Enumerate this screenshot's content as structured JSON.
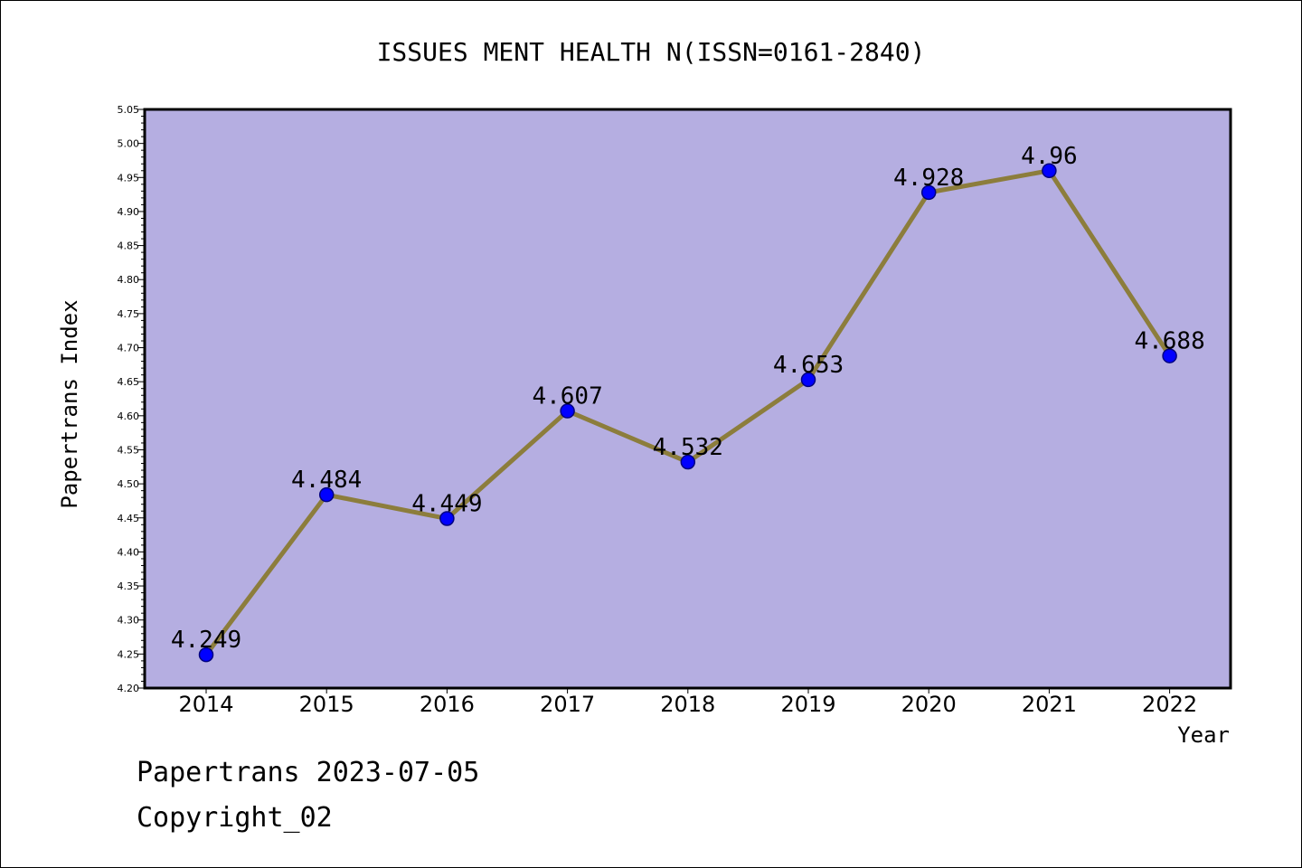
{
  "chart_data": {
    "type": "line",
    "title": "ISSUES MENT HEALTH N(ISSN=0161-2840)",
    "xlabel": "Year",
    "ylabel": "Papertrans Index",
    "categories": [
      "2014",
      "2015",
      "2016",
      "2017",
      "2018",
      "2019",
      "2020",
      "2021",
      "2022"
    ],
    "series": [
      {
        "values": [
          4.249,
          4.484,
          4.449,
          4.607,
          4.532,
          4.653,
          4.928,
          4.96,
          4.688
        ],
        "data_labels": [
          "4.249",
          "4.484",
          "4.449",
          "4.607",
          "4.532",
          "4.653",
          "4.928",
          "4.96",
          "4.688"
        ]
      }
    ],
    "ylim": [
      4.2,
      5.05
    ],
    "yticks": [
      "4.20",
      "4.25",
      "4.30",
      "4.35",
      "4.40",
      "4.45",
      "4.50",
      "4.55",
      "4.60",
      "4.65",
      "4.70",
      "4.75",
      "4.80",
      "4.85",
      "4.90",
      "4.95",
      "5.00",
      "5.05"
    ],
    "grid": false,
    "legend": "none",
    "colors": {
      "plot_background": "#b5aee1",
      "line": "#8c7d3c",
      "marker": "#0000ff",
      "marker_edge": "#000080"
    }
  },
  "footer": {
    "date_line": "Papertrans 2023-07-05",
    "copyright": "Copyright_02"
  }
}
